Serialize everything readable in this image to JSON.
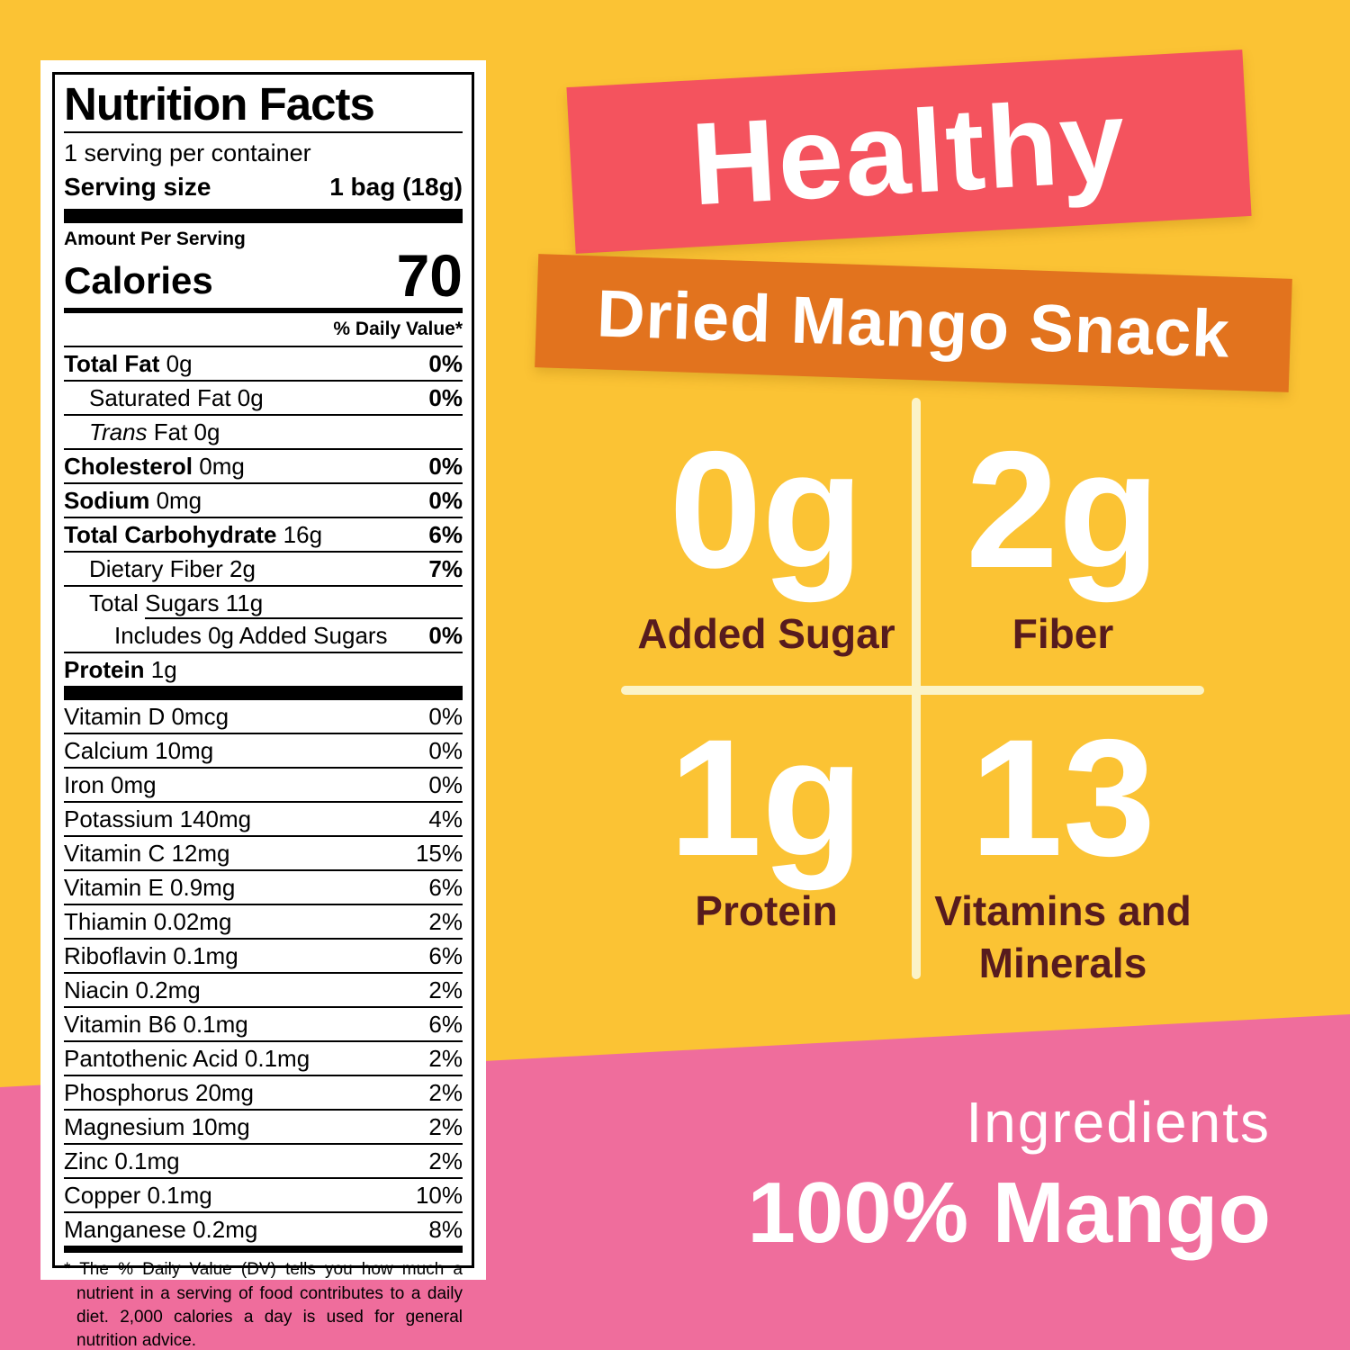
{
  "colors": {
    "yellow": "#FBC334",
    "pink": "#EF6D9C",
    "red_banner": "#F4535E",
    "orange_banner": "#E2731E",
    "cream_divider": "#FBF3C7",
    "maroon_text": "#571B1E"
  },
  "label": {
    "title": "Nutrition Facts",
    "serving_per_container": "1 serving per container",
    "serving_size_label": "Serving size",
    "serving_size_value": "1 bag (18g)",
    "amount_per_serving": "Amount Per Serving",
    "calories_label": "Calories",
    "calories_value": "70",
    "daily_value_header": "% Daily Value*",
    "rows": [
      {
        "bold": "Total Fat",
        "rest": "0g",
        "dv": "0%",
        "dvb": true
      },
      {
        "rest": "Saturated Fat 0g",
        "dv": "0%",
        "dvb": true,
        "indent": 1
      },
      {
        "italic": "Trans",
        "rest": "Fat 0g",
        "indent": 1
      },
      {
        "bold": "Cholesterol",
        "rest": "0mg",
        "dv": "0%",
        "dvb": true
      },
      {
        "bold": "Sodium",
        "rest": "0mg",
        "dv": "0%",
        "dvb": true
      },
      {
        "bold": "Total Carbohydrate",
        "rest": "16g",
        "dv": "6%",
        "dvb": true
      },
      {
        "rest": "Dietary Fiber 2g",
        "dv": "7%",
        "dvb": true,
        "indent": 1
      },
      {
        "rest": "Total Sugars 11g",
        "indent": 1
      },
      {
        "rest": "Includes 0g Added Sugars",
        "dv": "0%",
        "dvb": true,
        "indent": 2,
        "partial_rule": true
      },
      {
        "bold": "Protein",
        "rest": "1g"
      }
    ],
    "micronutrients": [
      {
        "text": "Vitamin D 0mcg",
        "dv": "0%"
      },
      {
        "text": "Calcium 10mg",
        "dv": "0%"
      },
      {
        "text": "Iron 0mg",
        "dv": "0%"
      },
      {
        "text": "Potassium 140mg",
        "dv": "4%"
      },
      {
        "text": "Vitamin C 12mg",
        "dv": "15%"
      },
      {
        "text": "Vitamin E 0.9mg",
        "dv": "6%"
      },
      {
        "text": "Thiamin 0.02mg",
        "dv": "2%"
      },
      {
        "text": "Riboflavin 0.1mg",
        "dv": "6%"
      },
      {
        "text": "Niacin 0.2mg",
        "dv": "2%"
      },
      {
        "text": "Vitamin B6 0.1mg",
        "dv": "6%"
      },
      {
        "text": "Pantothenic Acid 0.1mg",
        "dv": "2%"
      },
      {
        "text": "Phosphorus 20mg",
        "dv": "2%"
      },
      {
        "text": "Magnesium 10mg",
        "dv": "2%"
      },
      {
        "text": "Zinc 0.1mg",
        "dv": "2%"
      },
      {
        "text": "Copper 0.1mg",
        "dv": "10%"
      },
      {
        "text": "Manganese 0.2mg",
        "dv": "8%"
      }
    ],
    "footnote": "* The % Daily Value (DV) tells you how much a nutrient in a serving of food contributes to a daily diet. 2,000 calories a day is used for general nutrition advice."
  },
  "headline": {
    "text": "Healthy"
  },
  "subheadline": {
    "text": "Dried Mango Snack"
  },
  "stats": [
    {
      "value": "0g",
      "label": "Added Sugar"
    },
    {
      "value": "2g",
      "label": "Fiber"
    },
    {
      "value": "1g",
      "label": "Protein"
    },
    {
      "value": "13",
      "label": "Vitamins and Minerals"
    }
  ],
  "ingredients": {
    "heading": "Ingredients",
    "value": "100% Mango"
  }
}
